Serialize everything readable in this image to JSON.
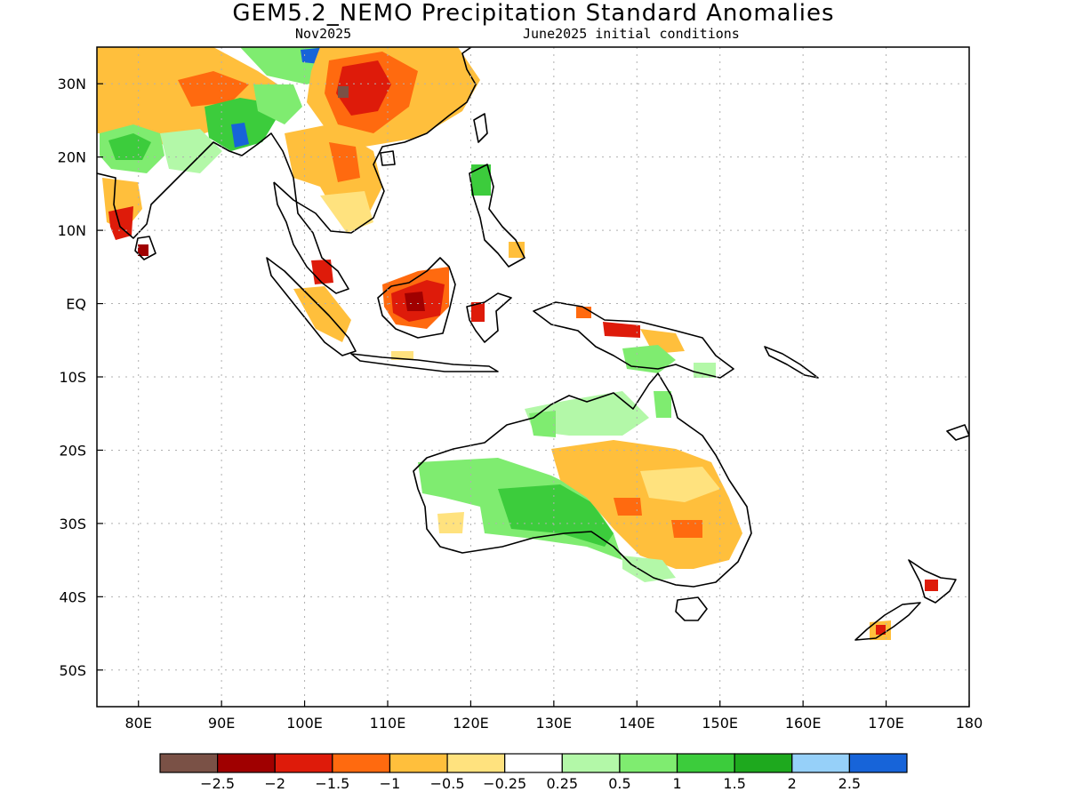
{
  "title": "GEM5.2_NEMO Precipitation Standard Anomalies",
  "valid_month": "Nov2025",
  "init_conditions": "June2025 initial conditions",
  "chart_data": {
    "type": "heatmap",
    "map_extent": {
      "lon_range": [
        75,
        180
      ],
      "lat_range": [
        -55,
        35
      ]
    },
    "x_ticks": [
      "80E",
      "90E",
      "100E",
      "110E",
      "120E",
      "130E",
      "140E",
      "150E",
      "160E",
      "170E",
      "180"
    ],
    "y_ticks": [
      "30N",
      "20N",
      "10N",
      "EQ",
      "10S",
      "20S",
      "30S",
      "40S",
      "50S"
    ],
    "x_tick_values": [
      80,
      90,
      100,
      110,
      120,
      130,
      140,
      150,
      160,
      170,
      180
    ],
    "y_tick_values": [
      30,
      20,
      10,
      0,
      -10,
      -20,
      -30,
      -40,
      -50
    ],
    "grid": true,
    "colorbar": {
      "colors": [
        "#7a5146",
        "#a00000",
        "#de1b0a",
        "#ff6a0f",
        "#ffbf3c",
        "#ffe27e",
        "#ffffff",
        "#b3f8a8",
        "#7fec70",
        "#3ccc3c",
        "#1ea91e",
        "#96d0f9",
        "#1764d9"
      ],
      "labels": [
        "-2.5",
        "-2",
        "-1.5",
        "-1",
        "-0.5",
        "-0.25",
        "0.25",
        "0.5",
        "1",
        "1.5",
        "2",
        "2.5"
      ]
    },
    "anomaly_regions": [
      {
        "region": "Western India",
        "value": 1.0
      },
      {
        "region": "Northern India",
        "value": -0.75
      },
      {
        "region": "Southern India / Sri Lanka",
        "value": -1.75
      },
      {
        "region": "Bangladesh",
        "value": 2.0
      },
      {
        "region": "Tibetan Plateau north",
        "value": 1.0
      },
      {
        "region": "Southern China",
        "value": -1.75
      },
      {
        "region": "Sichuan core",
        "value": -2.5
      },
      {
        "region": "Eastern China",
        "value": -0.75
      },
      {
        "region": "Mainland Southeast Asia",
        "value": -0.75
      },
      {
        "region": "Luzon",
        "value": 1.25
      },
      {
        "region": "Sumatra",
        "value": -0.75
      },
      {
        "region": "Malay Peninsula",
        "value": -1.5
      },
      {
        "region": "Borneo",
        "value": -1.75
      },
      {
        "region": "Sulawesi",
        "value": -1.5
      },
      {
        "region": "New Guinea central",
        "value": 1.0
      },
      {
        "region": "New Guinea north coast",
        "value": -1.75
      },
      {
        "region": "Northern Australia",
        "value": 0.75
      },
      {
        "region": "Western / central Australia",
        "value": 1.0
      },
      {
        "region": "Eastern Australia",
        "value": -0.75
      },
      {
        "region": "New South Wales core",
        "value": -1.0
      },
      {
        "region": "Victoria",
        "value": 0.75
      },
      {
        "region": "New Zealand North Island",
        "value": -1.75
      },
      {
        "region": "New Zealand South Island",
        "value": -1.25
      }
    ]
  }
}
